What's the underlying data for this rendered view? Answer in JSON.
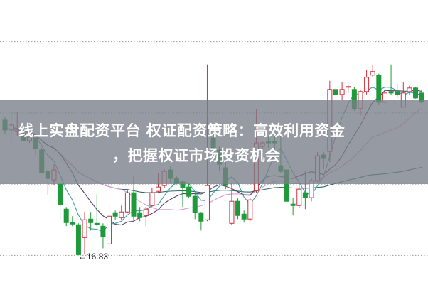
{
  "title": {
    "line1": "线上实盘配资平台 权证配资策略：高效利用资金",
    "line2": "，把握权证市场投资机会"
  },
  "chart_data": {
    "type": "candlestick",
    "ylim": [
      16.0,
      24.0
    ],
    "grid": true,
    "gridlines": [
      22.83,
      20.83,
      18.83,
      16.83
    ],
    "low_annotation": {
      "label": "←16.83",
      "value": 16.83
    },
    "colors": {
      "up": "#d0303a",
      "down": "#1f9a3a",
      "ma5": "#3f9aa8",
      "ma10": "#5b3f66",
      "ma20": "#d79ad7",
      "ma60": "#2f6b5f"
    },
    "moving_averages": [
      5,
      10,
      20,
      60
    ],
    "ohlc": [
      [
        20.63,
        20.73,
        20.25,
        20.35
      ],
      [
        20.35,
        20.79,
        19.99,
        20.49
      ],
      [
        20.31,
        20.85,
        20.19,
        20.35
      ],
      [
        20.25,
        20.31,
        20.03,
        20.05
      ],
      [
        20.05,
        20.23,
        19.99,
        20.15
      ],
      [
        20.13,
        20.19,
        19.65,
        19.83
      ],
      [
        19.79,
        19.85,
        19.13,
        19.15
      ],
      [
        19.19,
        19.25,
        18.53,
        18.99
      ],
      [
        18.95,
        19.39,
        18.79,
        19.23
      ],
      [
        18.83,
        18.85,
        17.85,
        18.25
      ],
      [
        18.13,
        18.19,
        17.65,
        17.75
      ],
      [
        17.75,
        17.93,
        17.65,
        17.71
      ],
      [
        17.69,
        17.73,
        16.83,
        16.85
      ],
      [
        17.33,
        18.05,
        16.85,
        17.83
      ],
      [
        17.85,
        18.05,
        17.53,
        17.75
      ],
      [
        17.73,
        18.55,
        17.65,
        17.69
      ],
      [
        17.65,
        17.73,
        17.03,
        17.35
      ],
      [
        17.15,
        18.25,
        17.15,
        17.93
      ],
      [
        18.03,
        18.09,
        17.83,
        17.93
      ],
      [
        17.89,
        18.23,
        17.83,
        18.05
      ],
      [
        18.05,
        18.65,
        18.03,
        18.59
      ],
      [
        18.59,
        19.05,
        17.79,
        17.93
      ],
      [
        18.03,
        18.19,
        17.79,
        17.89
      ],
      [
        17.95,
        18.19,
        17.65,
        18.13
      ],
      [
        18.23,
        18.73,
        18.19,
        18.59
      ],
      [
        18.63,
        19.13,
        18.59,
        18.75
      ],
      [
        18.79,
        19.25,
        18.73,
        19.19
      ],
      [
        19.23,
        19.35,
        18.85,
        18.99
      ],
      [
        18.99,
        19.05,
        18.83,
        18.85
      ],
      [
        18.89,
        18.95,
        18.19,
        18.73
      ],
      [
        18.75,
        18.85,
        18.45,
        18.49
      ],
      [
        18.49,
        18.59,
        17.85,
        18.03
      ],
      [
        18.03,
        18.05,
        17.53,
        17.79
      ],
      [
        17.83,
        22.19,
        17.79,
        18.79
      ],
      [
        20.13,
        20.29,
        19.69,
        19.85
      ],
      [
        19.79,
        19.89,
        19.19,
        19.39
      ],
      [
        19.29,
        19.49,
        18.69,
        18.79
      ],
      [
        17.73,
        18.85,
        17.69,
        18.35
      ],
      [
        18.35,
        18.43,
        17.85,
        17.95
      ],
      [
        17.99,
        18.09,
        17.75,
        17.85
      ],
      [
        17.85,
        18.43,
        17.79,
        18.39
      ],
      [
        18.65,
        20.95,
        18.59,
        19.99
      ],
      [
        19.89,
        20.05,
        19.79,
        19.99
      ],
      [
        20.03,
        20.19,
        19.85,
        19.99
      ],
      [
        20.03,
        20.19,
        19.73,
        19.99
      ],
      [
        19.35,
        20.19,
        19.15,
        19.19
      ],
      [
        19.23,
        19.23,
        18.33,
        18.35
      ],
      [
        18.27,
        18.45,
        17.95,
        18.23
      ],
      [
        18.23,
        18.85,
        18.15,
        18.69
      ],
      [
        18.59,
        19.19,
        18.13,
        18.45
      ],
      [
        18.45,
        18.99,
        18.35,
        18.93
      ],
      [
        18.93,
        19.73,
        18.89,
        19.63
      ],
      [
        19.65,
        19.73,
        19.25,
        19.55
      ],
      [
        19.75,
        21.73,
        19.45,
        21.49
      ],
      [
        21.49,
        21.55,
        21.15,
        21.35
      ],
      [
        21.35,
        21.69,
        21.19,
        21.49
      ],
      [
        21.55,
        21.63,
        21.39,
        21.57
      ],
      [
        21.49,
        21.55,
        20.89,
        20.95
      ],
      [
        20.95,
        21.49,
        20.75,
        21.43
      ],
      [
        21.43,
        22.03,
        21.35,
        21.83
      ],
      [
        21.89,
        22.19,
        21.83,
        21.99
      ],
      [
        21.89,
        21.93,
        21.05,
        21.13
      ],
      [
        21.13,
        21.45,
        21.05,
        21.39
      ],
      [
        21.43,
        22.19,
        21.33,
        21.39
      ],
      [
        21.43,
        21.65,
        21.25,
        21.35
      ],
      [
        20.99,
        21.69,
        20.99,
        21.39
      ],
      [
        21.43,
        21.59,
        21.33,
        21.53
      ],
      [
        21.53,
        21.55,
        21.23,
        21.25
      ],
      [
        21.39,
        21.49,
        21.09,
        21.13
      ]
    ]
  }
}
